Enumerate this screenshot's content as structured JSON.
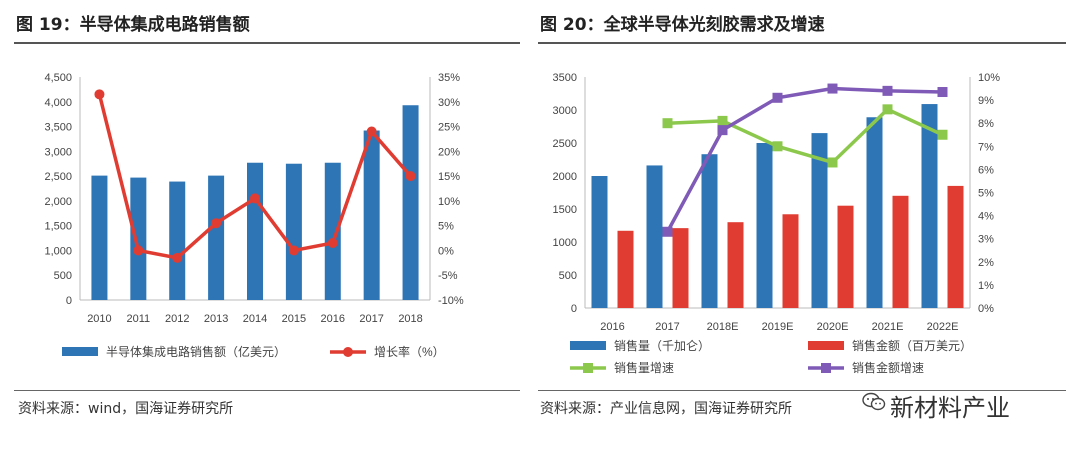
{
  "left_figure": {
    "title": "图 19：半导体集成电路销售额",
    "source": "资料来源：wind，国海证券研究所"
  },
  "right_figure": {
    "title": "图 20：全球半导体光刻胶需求及增速",
    "source": "资料来源：产业信息网，国海证券研究所"
  },
  "watermark": {
    "text": "新材料产业",
    "icon": "wechat-icon"
  },
  "chart_data": [
    {
      "type": "bar",
      "categories": [
        "2010",
        "2011",
        "2012",
        "2013",
        "2014",
        "2015",
        "2016",
        "2017",
        "2018"
      ],
      "ylim": [
        0,
        4500
      ],
      "y_ticks": [
        "0",
        "500",
        "1,000",
        "1,500",
        "2,000",
        "2,500",
        "3,000",
        "3,500",
        "4,000",
        "4,500"
      ],
      "y2lim": [
        -10,
        35
      ],
      "y2_ticks": [
        "-10%",
        "-5%",
        "0%",
        "5%",
        "10%",
        "15%",
        "20%",
        "25%",
        "30%",
        "35%"
      ],
      "series": [
        {
          "name": "半导体集成电路销售额（亿美元）",
          "type": "bar",
          "axis": "left",
          "color": "#2e75b6",
          "values": [
            2510,
            2470,
            2390,
            2510,
            2770,
            2750,
            2770,
            3420,
            3930
          ]
        },
        {
          "name": "增长率（%）",
          "type": "line",
          "axis": "right",
          "color": "#e03c31",
          "values": [
            31.5,
            0,
            -1.5,
            5.5,
            10.5,
            0,
            1.5,
            24,
            15
          ]
        }
      ],
      "legend_position": "bottom",
      "grid": false
    },
    {
      "type": "bar",
      "categories": [
        "2016",
        "2017",
        "2018E",
        "2019E",
        "2020E",
        "2021E",
        "2022E"
      ],
      "ylim": [
        0,
        3500
      ],
      "y_ticks": [
        "0",
        "500",
        "1000",
        "1500",
        "2000",
        "2500",
        "3000",
        "3500"
      ],
      "y2lim": [
        0,
        10
      ],
      "y2_ticks": [
        "0%",
        "1%",
        "2%",
        "3%",
        "4%",
        "5%",
        "6%",
        "7%",
        "8%",
        "9%",
        "10%"
      ],
      "series": [
        {
          "name": "销售量（千加仑）",
          "type": "bar",
          "axis": "left",
          "color": "#2e75b6",
          "values": [
            2000,
            2160,
            2330,
            2500,
            2650,
            2890,
            3090
          ]
        },
        {
          "name": "销售金额（百万美元）",
          "type": "bar",
          "axis": "left",
          "color": "#e03c31",
          "values": [
            1170,
            1210,
            1300,
            1420,
            1550,
            1700,
            1850
          ]
        },
        {
          "name": "销售量增速",
          "type": "line",
          "axis": "right",
          "color": "#8cc84b",
          "values": [
            null,
            8.0,
            8.1,
            7.0,
            6.3,
            8.6,
            7.5
          ]
        },
        {
          "name": "销售金额增速",
          "type": "line",
          "axis": "right",
          "color": "#7f5ab6",
          "values": [
            null,
            3.3,
            7.7,
            9.1,
            9.5,
            9.4,
            9.35
          ]
        }
      ],
      "legend_position": "bottom",
      "grid": false
    }
  ]
}
